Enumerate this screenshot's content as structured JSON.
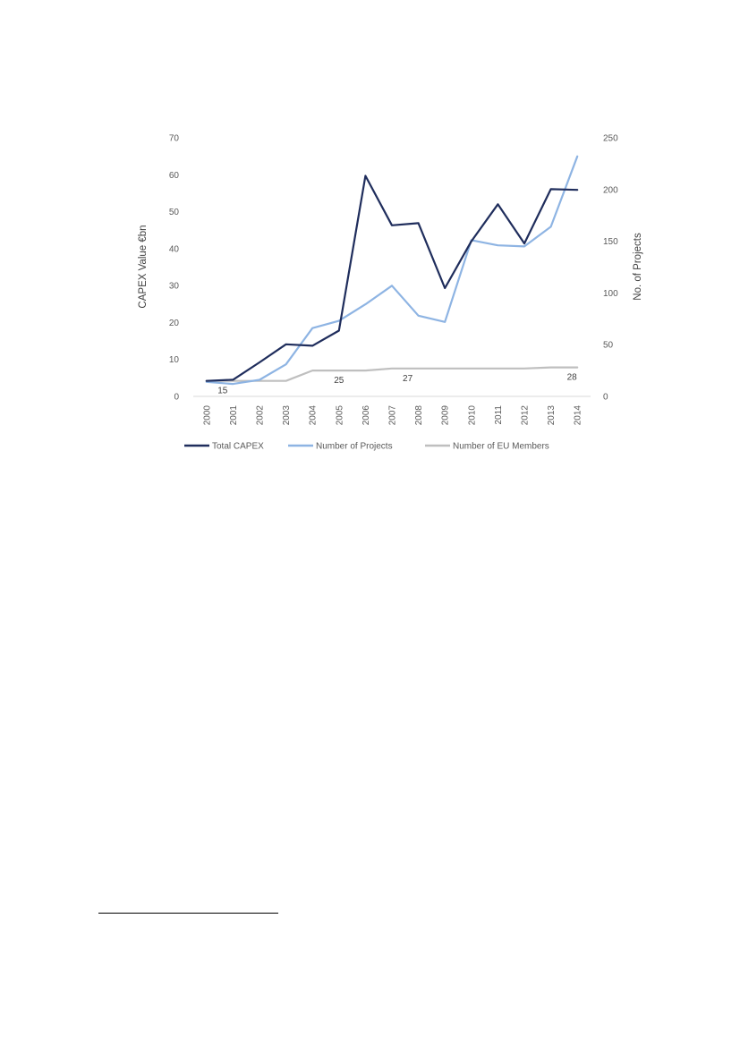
{
  "chart_data": {
    "type": "line",
    "title": "",
    "x": [
      "2000",
      "2001",
      "2002",
      "2003",
      "2004",
      "2005",
      "2006",
      "2007",
      "2008",
      "2009",
      "2010",
      "2011",
      "2012",
      "2013",
      "2014"
    ],
    "ylabel_left": "CAPEX Value €bn",
    "ylabel_right": "No. of Projects",
    "ylim_left": [
      0,
      70
    ],
    "ylim_right": [
      0,
      250
    ],
    "yticks_left": [
      "0",
      "10",
      "20",
      "30",
      "40",
      "50",
      "60",
      "70"
    ],
    "yticks_right": [
      "0",
      "50",
      "100",
      "150",
      "200",
      "250"
    ],
    "grid": false,
    "legend_position": "bottom",
    "series": [
      {
        "name": "Total CAPEX",
        "axis": "left",
        "color": "#1f2d5c",
        "values": [
          4.2,
          4.5,
          9.2,
          14.1,
          13.7,
          17.8,
          59.7,
          46.3,
          46.9,
          29.3,
          42.0,
          52.0,
          41.4,
          56.1,
          55.9
        ]
      },
      {
        "name": "Number of Projects",
        "axis": "right",
        "color": "#8eb4e3",
        "values": [
          14,
          12,
          16,
          31,
          66,
          73,
          89,
          107,
          78,
          72,
          151,
          146,
          145,
          164,
          232
        ]
      },
      {
        "name": "Number of EU Members",
        "axis": "right",
        "color": "#bfbfbf",
        "values": [
          15,
          15,
          15,
          15,
          25,
          25,
          25,
          27,
          27,
          27,
          27,
          27,
          27,
          28,
          28
        ]
      }
    ],
    "annotations": [
      {
        "text": "15",
        "x": "2000"
      },
      {
        "text": "25",
        "x": "2005"
      },
      {
        "text": "27",
        "x": "2008"
      },
      {
        "text": "28",
        "x": "2014"
      }
    ]
  }
}
